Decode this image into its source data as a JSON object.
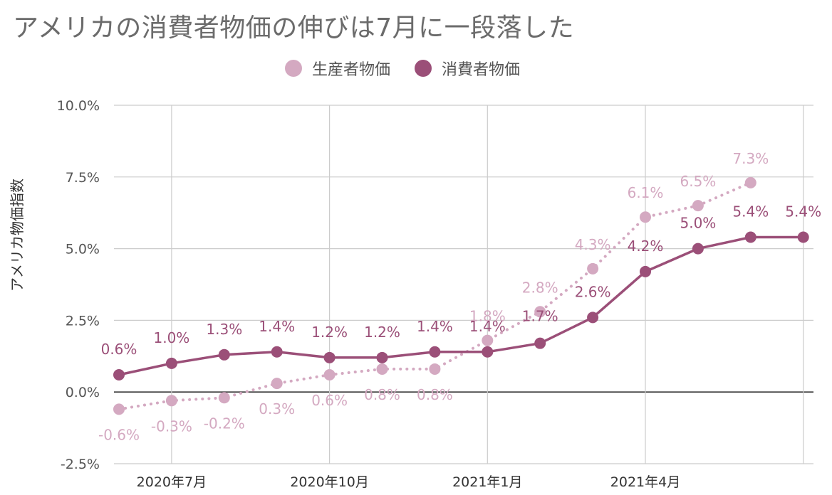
{
  "chart_data": {
    "type": "line",
    "title": "アメリカの消費者物価の伸びは7月に一段落した",
    "ylabel": "アメリカ物価指数",
    "ylim": [
      -2.5,
      10.0
    ],
    "yticks": [
      "10.0%",
      "7.5%",
      "5.0%",
      "2.5%",
      "0.0%",
      "-2.5%"
    ],
    "ytick_values": [
      10.0,
      7.5,
      5.0,
      2.5,
      0.0,
      -2.5
    ],
    "x": [
      "2020-06",
      "2020-07",
      "2020-08",
      "2020-09",
      "2020-10",
      "2020-11",
      "2020-12",
      "2021-01",
      "2021-02",
      "2021-03",
      "2021-04",
      "2021-05",
      "2021-06",
      "2021-07"
    ],
    "xtick_labels": [
      "2020年7月",
      "2020年10月",
      "2021年1月",
      "2021年4月"
    ],
    "xtick_dates": [
      "2020-07",
      "2020-10",
      "2021-01",
      "2021-04"
    ],
    "grid": true,
    "legend_position": "top",
    "series": [
      {
        "name": "生産者物価",
        "color": "#d4a9c1",
        "style": "dotted",
        "values": [
          -0.6,
          -0.3,
          -0.2,
          0.3,
          0.6,
          0.8,
          0.8,
          1.8,
          2.8,
          4.3,
          6.1,
          6.5,
          7.3,
          null
        ],
        "labels": [
          "-0.6%",
          "-0.3%",
          "-0.2%",
          "0.3%",
          "0.6%",
          "0.8%",
          "0.8%",
          "1.8%",
          "2.8%",
          "4.3%",
          "6.1%",
          "6.5%",
          "7.3%",
          null
        ]
      },
      {
        "name": "消費者物価",
        "color": "#9b4f78",
        "style": "solid",
        "values": [
          0.6,
          1.0,
          1.3,
          1.4,
          1.2,
          1.2,
          1.4,
          1.4,
          1.7,
          2.6,
          4.2,
          5.0,
          5.4,
          5.4
        ],
        "labels": [
          "0.6%",
          "1.0%",
          "1.3%",
          "1.4%",
          "1.2%",
          "1.2%",
          "1.4%",
          "1.4%",
          "1.7%",
          "2.6%",
          "4.2%",
          "5.0%",
          "5.4%",
          "5.4%"
        ]
      }
    ]
  }
}
